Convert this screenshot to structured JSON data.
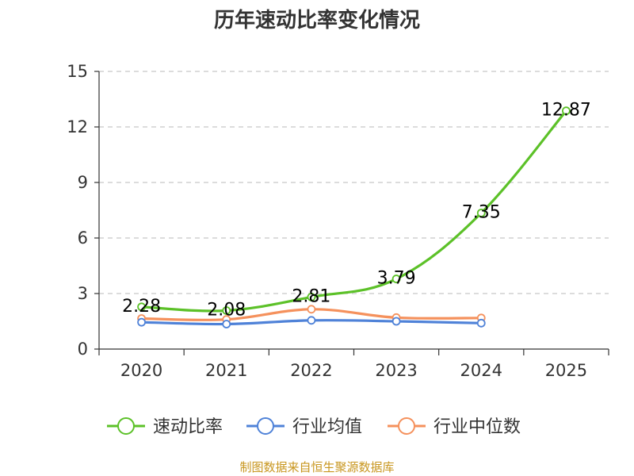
{
  "chart_data": {
    "type": "line",
    "title": "历年速动比率变化情况",
    "categories": [
      "2020",
      "2021",
      "2022",
      "2023",
      "2024",
      "2025"
    ],
    "y_ticks": [
      "0",
      "3",
      "6",
      "9",
      "12",
      "15"
    ],
    "ylim": [
      0,
      15
    ],
    "grid": true,
    "legend_position": "bottom",
    "series": [
      {
        "name": "速动比率",
        "color": "#5cc128",
        "values": [
          2.28,
          2.08,
          2.81,
          3.79,
          7.35,
          12.87
        ],
        "labels": [
          "2.28",
          "2.08",
          "2.81",
          "3.79",
          "7.35",
          "12.87"
        ]
      },
      {
        "name": "行业均值",
        "color": "#4f82d8",
        "values": [
          1.45,
          1.35,
          1.55,
          1.5,
          1.4,
          null
        ]
      },
      {
        "name": "行业中位数",
        "color": "#f5915c",
        "values": [
          1.65,
          1.6,
          2.15,
          1.7,
          1.68,
          null
        ]
      }
    ],
    "source": "制图数据来自恒生聚源数据库"
  }
}
